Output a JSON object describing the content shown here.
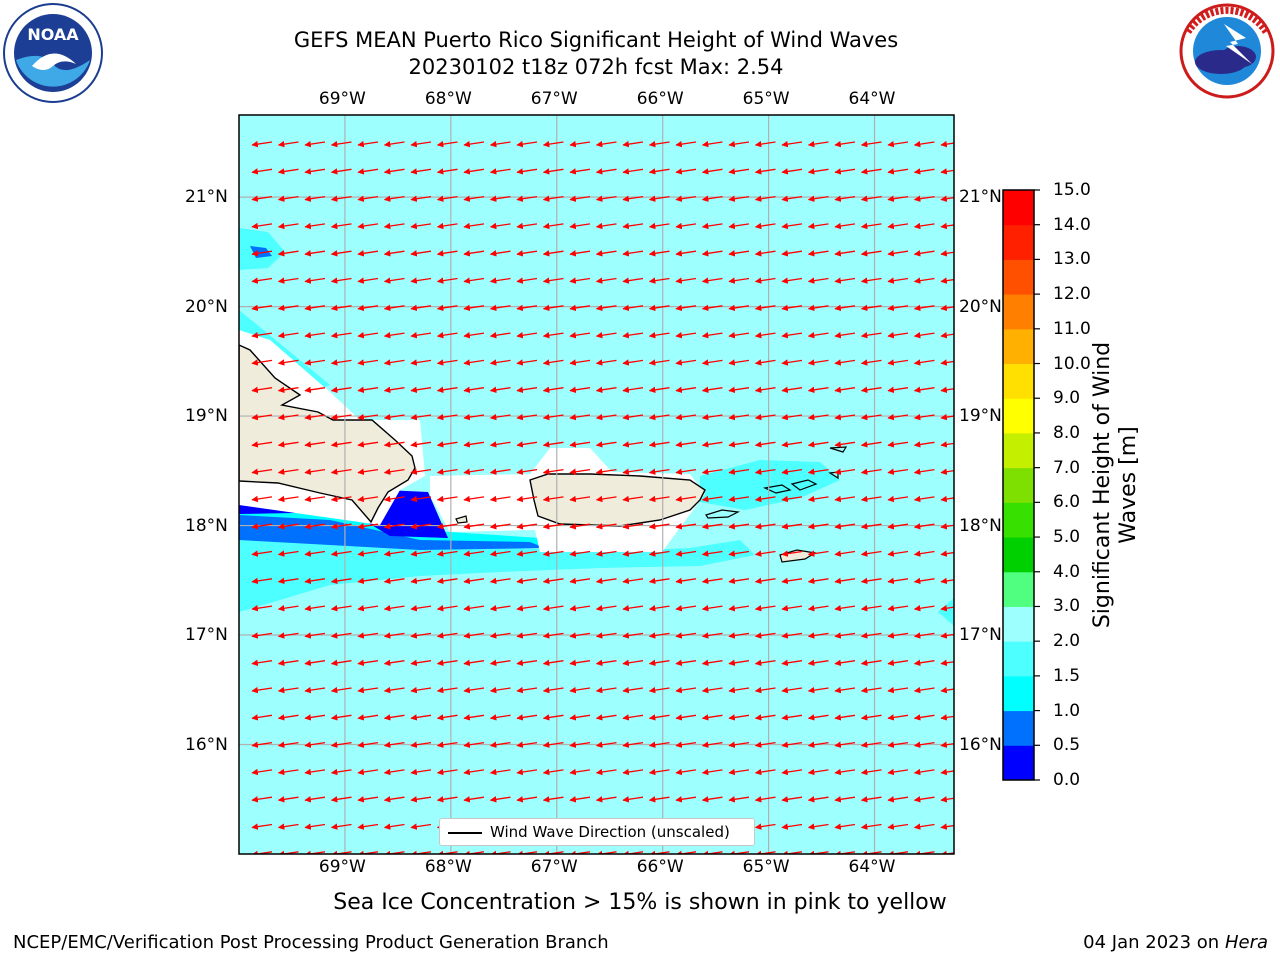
{
  "title": {
    "line1": "GEFS MEAN Puerto Rico Significant Height of Wind Waves",
    "line2": "20230102 t18z 072h fcst   Max: 2.54"
  },
  "map": {
    "lon_labels": [
      "69°W",
      "68°W",
      "67°W",
      "66°W",
      "65°W",
      "64°W"
    ],
    "lat_labels": [
      "21°N",
      "20°N",
      "19°N",
      "18°N",
      "17°N",
      "16°N"
    ],
    "lon_range": [
      -70.0,
      -63.25
    ],
    "lat_range": [
      15.0,
      21.75
    ],
    "background_color": "#9effff",
    "land_color": "#efecdc",
    "arrow_color": "#ff0000",
    "arrow_direction": "toward west-southwest"
  },
  "legend": {
    "label": "Wind Wave Direction (unscaled)"
  },
  "colorbar": {
    "title_line1": "Significant Height of Wind",
    "title_line2": "Waves [m]",
    "levels": [
      "0.0",
      "0.5",
      "1.0",
      "1.5",
      "2.0",
      "3.0",
      "4.0",
      "5.0",
      "6.0",
      "7.0",
      "8.0",
      "9.0",
      "10.0",
      "11.0",
      "12.0",
      "13.0",
      "14.0",
      "15.0"
    ],
    "colors": [
      "#0000ff",
      "#0070ff",
      "#00ffff",
      "#4dffff",
      "#9effff",
      "#50ff80",
      "#00d000",
      "#38e000",
      "#7ee000",
      "#c4f000",
      "#ffff00",
      "#ffe000",
      "#ffb000",
      "#ff8000",
      "#ff5000",
      "#ff2000",
      "#ff0000"
    ]
  },
  "note": "Sea Ice Concentration > 15% is shown in pink to yellow",
  "footer": {
    "left": "NCEP/EMC/Verification Post Processing Product Generation Branch",
    "right_prefix": "04 Jan 2023 on ",
    "right_machine": "Hera"
  },
  "logos": {
    "noaa": {
      "text": "NOAA",
      "ring_text": "NATIONAL OCEANIC AND ATMOSPHERIC ADMINISTRATION · U.S. DEPARTMENT OF COMMERCE"
    },
    "nws": {
      "ring_text": "NATIONAL WEATHER SERVICE"
    }
  }
}
